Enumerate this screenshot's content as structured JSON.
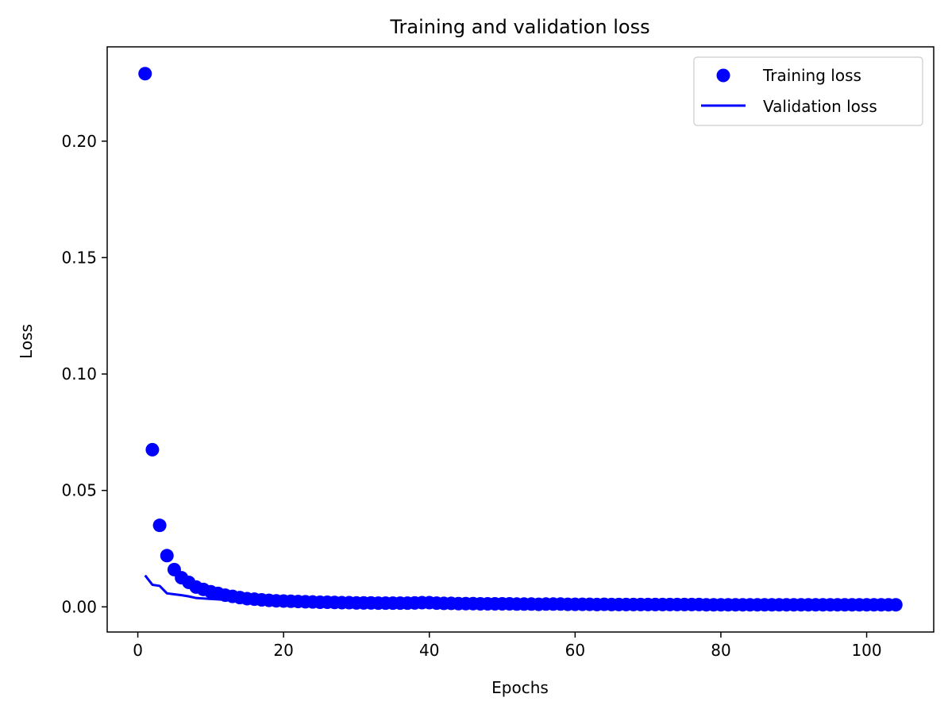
{
  "chart_data": {
    "type": "line",
    "title": "Training and validation loss",
    "xlabel": "Epochs",
    "ylabel": "Loss",
    "xlim": [
      -4.2,
      109.2
    ],
    "ylim": [
      -0.0108,
      0.2405
    ],
    "xticks": [
      0,
      20,
      40,
      60,
      80,
      100
    ],
    "yticks": [
      0.0,
      0.05,
      0.1,
      0.15,
      0.2
    ],
    "xtick_labels": [
      "0",
      "20",
      "40",
      "60",
      "80",
      "100"
    ],
    "ytick_labels": [
      "0.00",
      "0.05",
      "0.10",
      "0.15",
      "0.20"
    ],
    "grid": false,
    "legend_position": "top-right",
    "colors": {
      "series": "#0000ff",
      "axes": "#000000"
    },
    "series": [
      {
        "name": "Training loss",
        "style": "markers",
        "x": [
          1,
          2,
          3,
          4,
          5,
          6,
          7,
          8,
          9,
          10,
          11,
          12,
          13,
          14,
          15,
          16,
          17,
          18,
          19,
          20,
          21,
          22,
          23,
          24,
          25,
          26,
          27,
          28,
          29,
          30,
          31,
          32,
          33,
          34,
          35,
          36,
          37,
          38,
          39,
          40,
          41,
          42,
          43,
          44,
          45,
          46,
          47,
          48,
          49,
          50,
          51,
          52,
          53,
          54,
          55,
          56,
          57,
          58,
          59,
          60,
          61,
          62,
          63,
          64,
          65,
          66,
          67,
          68,
          69,
          70,
          71,
          72,
          73,
          74,
          75,
          76,
          77,
          78,
          79,
          80,
          81,
          82,
          83,
          84,
          85,
          86,
          87,
          88,
          89,
          90,
          91,
          92,
          93,
          94,
          95,
          96,
          97,
          98,
          99,
          100,
          101,
          102,
          103,
          104
        ],
        "y": [
          0.229,
          0.0675,
          0.035,
          0.022,
          0.016,
          0.0125,
          0.0105,
          0.0085,
          0.0075,
          0.0065,
          0.0058,
          0.005,
          0.0045,
          0.004,
          0.0035,
          0.0033,
          0.003,
          0.0028,
          0.0026,
          0.0025,
          0.0024,
          0.0023,
          0.0022,
          0.0021,
          0.002,
          0.002,
          0.0019,
          0.0018,
          0.0018,
          0.0017,
          0.0017,
          0.0017,
          0.0016,
          0.0016,
          0.0016,
          0.0016,
          0.0016,
          0.0017,
          0.0018,
          0.0018,
          0.0016,
          0.0015,
          0.0015,
          0.0014,
          0.0014,
          0.0014,
          0.0013,
          0.0013,
          0.0013,
          0.0013,
          0.0013,
          0.0012,
          0.0012,
          0.0012,
          0.0011,
          0.0012,
          0.0012,
          0.0012,
          0.0011,
          0.0011,
          0.0011,
          0.0011,
          0.001,
          0.0011,
          0.001,
          0.001,
          0.001,
          0.001,
          0.001,
          0.001,
          0.001,
          0.001,
          0.001,
          0.001,
          0.001,
          0.001,
          0.001,
          0.0009,
          0.0009,
          0.0009,
          0.0009,
          0.0009,
          0.0009,
          0.0009,
          0.0009,
          0.0009,
          0.0009,
          0.0009,
          0.0009,
          0.0009,
          0.0009,
          0.0009,
          0.0009,
          0.0009,
          0.0009,
          0.0009,
          0.0009,
          0.0009,
          0.0009,
          0.0009,
          0.0009,
          0.0009,
          0.0009,
          0.0009
        ]
      },
      {
        "name": "Validation loss",
        "style": "line",
        "x": [
          1,
          2,
          3,
          4,
          5,
          6,
          7,
          8,
          9,
          10,
          11,
          12,
          13,
          14,
          15,
          16,
          17,
          18,
          19,
          20,
          25,
          30,
          35,
          40,
          45,
          50,
          55,
          60,
          65,
          70,
          75,
          80,
          85,
          90,
          95,
          100,
          104
        ],
        "y": [
          0.0135,
          0.0095,
          0.009,
          0.0058,
          0.0054,
          0.005,
          0.0045,
          0.0038,
          0.0036,
          0.0034,
          0.0032,
          0.003,
          0.0028,
          0.0027,
          0.0026,
          0.0025,
          0.0024,
          0.0023,
          0.0022,
          0.0021,
          0.0019,
          0.0017,
          0.0015,
          0.0014,
          0.0013,
          0.0012,
          0.0011,
          0.0011,
          0.001,
          0.001,
          0.0009,
          0.0009,
          0.0009,
          0.0009,
          0.0009,
          0.0009,
          0.0009
        ]
      }
    ]
  }
}
